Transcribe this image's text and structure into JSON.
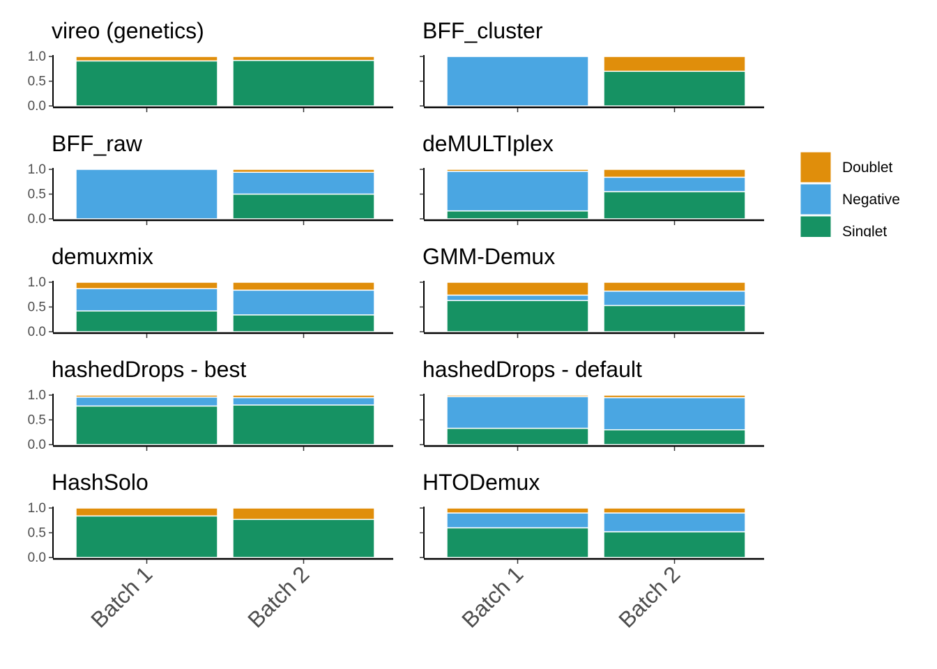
{
  "chart_data": {
    "type": "bar",
    "stacked": true,
    "categories": [
      "Batch 1",
      "Batch 2"
    ],
    "y_ticks": [
      "0.0",
      "0.5",
      "1.0"
    ],
    "ylim": [
      0,
      1
    ],
    "grid": false,
    "legend_position": "right",
    "legend": [
      {
        "name": "Doublet",
        "color": "#E08E0B"
      },
      {
        "name": "Negative",
        "color": "#4AA6E2"
      },
      {
        "name": "Singlet",
        "color": "#169263"
      }
    ],
    "panels": [
      {
        "title": "vireo (genetics)",
        "series": [
          {
            "name": "Singlet",
            "values": [
              0.91,
              0.92
            ]
          },
          {
            "name": "Negative",
            "values": [
              0.0,
              0.0
            ]
          },
          {
            "name": "Doublet",
            "values": [
              0.09,
              0.08
            ]
          }
        ]
      },
      {
        "title": "BFF_cluster",
        "series": [
          {
            "name": "Singlet",
            "values": [
              0.0,
              0.7
            ]
          },
          {
            "name": "Negative",
            "values": [
              1.0,
              0.0
            ]
          },
          {
            "name": "Doublet",
            "values": [
              0.0,
              0.3
            ]
          }
        ]
      },
      {
        "title": "BFF_raw",
        "series": [
          {
            "name": "Singlet",
            "values": [
              0.0,
              0.5
            ]
          },
          {
            "name": "Negative",
            "values": [
              1.0,
              0.44
            ]
          },
          {
            "name": "Doublet",
            "values": [
              0.0,
              0.06
            ]
          }
        ]
      },
      {
        "title": "deMULTIplex",
        "series": [
          {
            "name": "Singlet",
            "values": [
              0.16,
              0.55
            ]
          },
          {
            "name": "Negative",
            "values": [
              0.8,
              0.29
            ]
          },
          {
            "name": "Doublet",
            "values": [
              0.04,
              0.16
            ]
          }
        ]
      },
      {
        "title": "demuxmix",
        "series": [
          {
            "name": "Singlet",
            "values": [
              0.42,
              0.34
            ]
          },
          {
            "name": "Negative",
            "values": [
              0.45,
              0.5
            ]
          },
          {
            "name": "Doublet",
            "values": [
              0.13,
              0.16
            ]
          }
        ]
      },
      {
        "title": "GMM-Demux",
        "series": [
          {
            "name": "Singlet",
            "values": [
              0.63,
              0.53
            ]
          },
          {
            "name": "Negative",
            "values": [
              0.11,
              0.29
            ]
          },
          {
            "name": "Doublet",
            "values": [
              0.26,
              0.18
            ]
          }
        ]
      },
      {
        "title": "hashedDrops - best",
        "series": [
          {
            "name": "Singlet",
            "values": [
              0.78,
              0.8
            ]
          },
          {
            "name": "Negative",
            "values": [
              0.18,
              0.15
            ]
          },
          {
            "name": "Doublet",
            "values": [
              0.04,
              0.05
            ]
          }
        ]
      },
      {
        "title": "hashedDrops - default",
        "series": [
          {
            "name": "Singlet",
            "values": [
              0.33,
              0.3
            ]
          },
          {
            "name": "Negative",
            "values": [
              0.64,
              0.65
            ]
          },
          {
            "name": "Doublet",
            "values": [
              0.03,
              0.05
            ]
          }
        ]
      },
      {
        "title": "HashSolo",
        "series": [
          {
            "name": "Singlet",
            "values": [
              0.84,
              0.77
            ]
          },
          {
            "name": "Negative",
            "values": [
              0.0,
              0.0
            ]
          },
          {
            "name": "Doublet",
            "values": [
              0.16,
              0.23
            ]
          }
        ]
      },
      {
        "title": "HTODemux",
        "series": [
          {
            "name": "Singlet",
            "values": [
              0.6,
              0.52
            ]
          },
          {
            "name": "Negative",
            "values": [
              0.3,
              0.38
            ]
          },
          {
            "name": "Doublet",
            "values": [
              0.1,
              0.1
            ]
          }
        ]
      }
    ]
  }
}
